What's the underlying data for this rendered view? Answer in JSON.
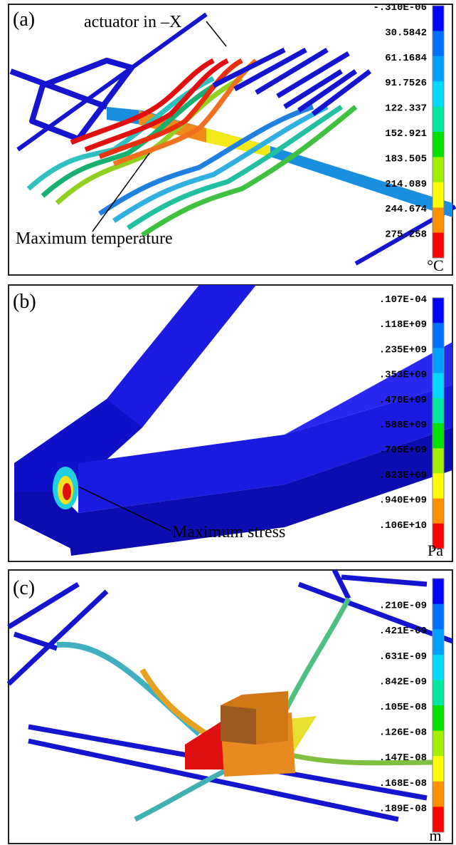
{
  "panels": [
    {
      "label": "(a)",
      "annotations": [
        "actuator in –X",
        "Maximum temperature"
      ],
      "colorbar": {
        "labels": [
          "-.310E-06",
          "30.5842",
          "61.1684",
          "91.7526",
          "122.337",
          "152.921",
          "183.505",
          "214.089",
          "244.674",
          "275.258"
        ],
        "unit": "°C"
      }
    },
    {
      "label": "(b)",
      "annotations": [
        "Maximum stress"
      ],
      "colorbar": {
        "labels": [
          ".107E-04",
          ".118E+09",
          ".235E+09",
          ".353E+09",
          ".470E+09",
          ".588E+09",
          ".705E+09",
          ".823E+09",
          ".940E+09",
          ".106E+10"
        ],
        "unit": "Pa"
      }
    },
    {
      "label": "(c)",
      "annotations": [],
      "colorbar": {
        "labels": [
          ".210E-09",
          ".421E-09",
          ".631E-09",
          ".842E-09",
          ".105E-08",
          ".126E-08",
          ".147E-08",
          ".168E-08",
          ".189E-08"
        ],
        "unit": "m"
      }
    }
  ]
}
